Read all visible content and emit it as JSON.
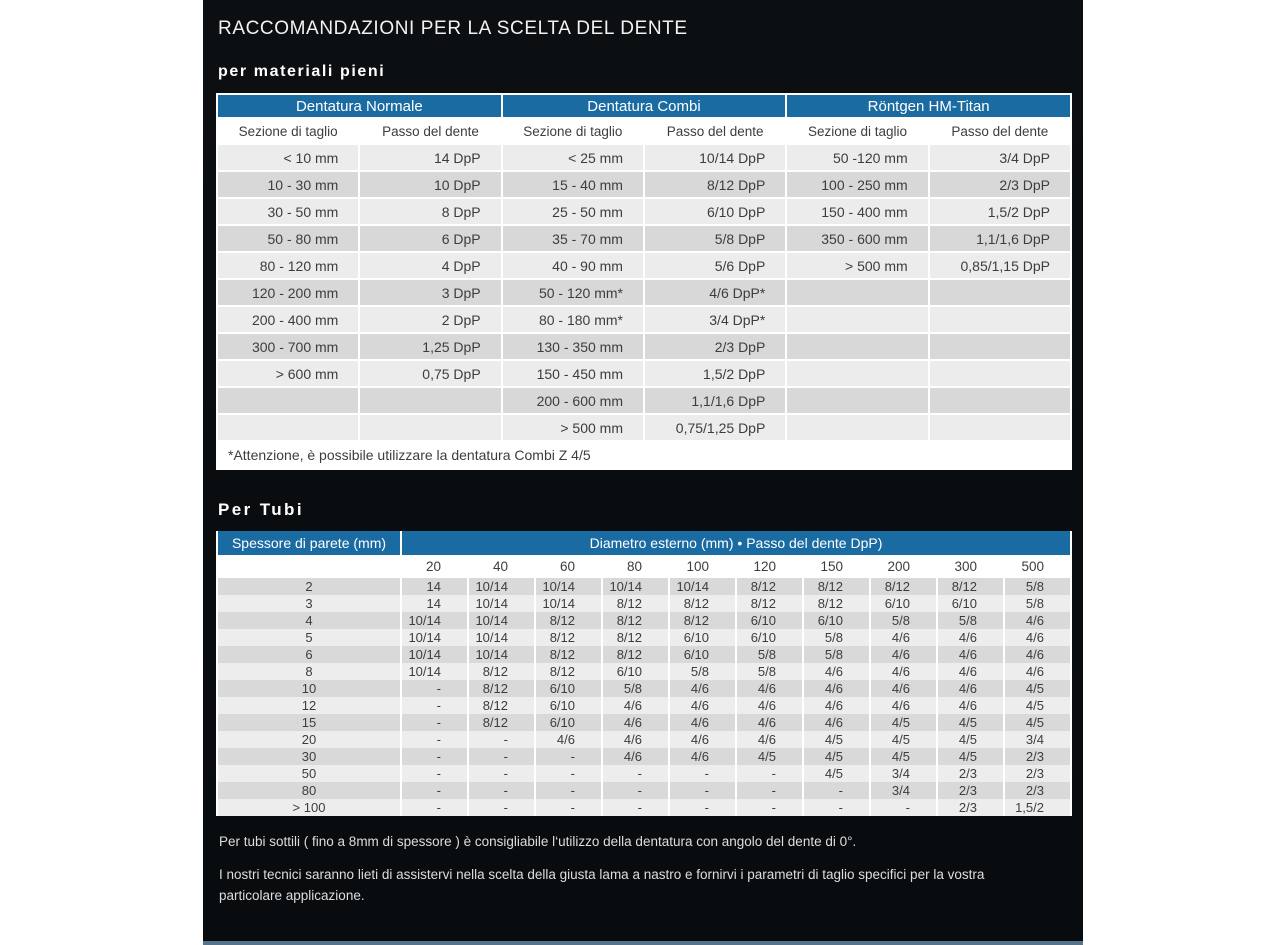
{
  "page": {
    "title": "RACCOMANDAZIONI PER LA SCELTA DEL DENTE"
  },
  "colors": {
    "header_blue": "#1b6ba3",
    "panel_dark": "#0a0d10",
    "row_light": "#ececec",
    "row_dark": "#d8d8d8",
    "accent_bar": "#56738a"
  },
  "solid_section": {
    "heading": "per materiali pieni",
    "group_headers": [
      "Dentatura Normale",
      "Dentatura Combi",
      "Röntgen HM-Titan"
    ],
    "sub_headers": [
      "Sezione di taglio",
      "Passo del dente",
      "Sezione di taglio",
      "Passo del dente",
      "Sezione di taglio",
      "Passo del dente"
    ],
    "rows": [
      [
        "< 10 mm",
        "14 DpP",
        "< 25 mm",
        "10/14 DpP",
        "50 -120 mm",
        "3/4 DpP"
      ],
      [
        "10 - 30 mm",
        "10 DpP",
        "15 - 40 mm",
        "8/12 DpP",
        "100 - 250 mm",
        "2/3 DpP"
      ],
      [
        "30 - 50 mm",
        "8 DpP",
        "25 - 50 mm",
        "6/10 DpP",
        "150 - 400 mm",
        "1,5/2 DpP"
      ],
      [
        "50 - 80 mm",
        "6 DpP",
        "35 - 70 mm",
        "5/8 DpP",
        "350 - 600 mm",
        "1,1/1,6 DpP"
      ],
      [
        "80 - 120 mm",
        "4 DpP",
        "40 - 90 mm",
        "5/6 DpP",
        "> 500 mm",
        "0,85/1,15 DpP"
      ],
      [
        "120 - 200 mm",
        "3 DpP",
        "50 - 120 mm*",
        "4/6 DpP*",
        "",
        ""
      ],
      [
        "200 - 400 mm",
        "2 DpP",
        "80 - 180 mm*",
        "3/4 DpP*",
        "",
        ""
      ],
      [
        "300 - 700 mm",
        "1,25 DpP",
        "130 - 350 mm",
        "2/3 DpP",
        "",
        ""
      ],
      [
        "> 600 mm",
        "0,75 DpP",
        "150 - 450 mm",
        "1,5/2 DpP",
        "",
        ""
      ],
      [
        "",
        "",
        "200 - 600 mm",
        "1,1/1,6 DpP",
        "",
        ""
      ],
      [
        "",
        "",
        "> 500 mm",
        "0,75/1,25 DpP",
        "",
        ""
      ]
    ],
    "footnote": "*Attenzione, è possibile utilizzare la dentatura Combi Z 4/5"
  },
  "tubes_section": {
    "heading": "Per Tubi",
    "wall_header": "Spessore di parete (mm)",
    "diameter_header": "Diametro esterno (mm) • Passo del dente DpP)",
    "diameters": [
      "20",
      "40",
      "60",
      "80",
      "100",
      "120",
      "150",
      "200",
      "300",
      "500"
    ],
    "rows": [
      [
        "2",
        "14",
        "10/14",
        "10/14",
        "10/14",
        "10/14",
        "8/12",
        "8/12",
        "8/12",
        "8/12",
        "5/8"
      ],
      [
        "3",
        "14",
        "10/14",
        "10/14",
        "8/12",
        "8/12",
        "8/12",
        "8/12",
        "6/10",
        "6/10",
        "5/8"
      ],
      [
        "4",
        "10/14",
        "10/14",
        "8/12",
        "8/12",
        "8/12",
        "6/10",
        "6/10",
        "5/8",
        "5/8",
        "4/6"
      ],
      [
        "5",
        "10/14",
        "10/14",
        "8/12",
        "8/12",
        "6/10",
        "6/10",
        "5/8",
        "4/6",
        "4/6",
        "4/6"
      ],
      [
        "6",
        "10/14",
        "10/14",
        "8/12",
        "8/12",
        "6/10",
        "5/8",
        "5/8",
        "4/6",
        "4/6",
        "4/6"
      ],
      [
        "8",
        "10/14",
        "8/12",
        "8/12",
        "6/10",
        "5/8",
        "5/8",
        "4/6",
        "4/6",
        "4/6",
        "4/6"
      ],
      [
        "10",
        "-",
        "8/12",
        "6/10",
        "5/8",
        "4/6",
        "4/6",
        "4/6",
        "4/6",
        "4/6",
        "4/5"
      ],
      [
        "12",
        "-",
        "8/12",
        "6/10",
        "4/6",
        "4/6",
        "4/6",
        "4/6",
        "4/6",
        "4/6",
        "4/5"
      ],
      [
        "15",
        "-",
        "8/12",
        "6/10",
        "4/6",
        "4/6",
        "4/6",
        "4/6",
        "4/5",
        "4/5",
        "4/5"
      ],
      [
        "20",
        "-",
        "-",
        "4/6",
        "4/6",
        "4/6",
        "4/6",
        "4/5",
        "4/5",
        "4/5",
        "3/4"
      ],
      [
        "30",
        "-",
        "-",
        "-",
        "4/6",
        "4/6",
        "4/5",
        "4/5",
        "4/5",
        "4/5",
        "2/3"
      ],
      [
        "50",
        "-",
        "-",
        "-",
        "-",
        "-",
        "-",
        "4/5",
        "3/4",
        "2/3",
        "2/3"
      ],
      [
        "80",
        "-",
        "-",
        "-",
        "-",
        "-",
        "-",
        "-",
        "3/4",
        "2/3",
        "2/3"
      ],
      [
        "> 100",
        "-",
        "-",
        "-",
        "-",
        "-",
        "-",
        "-",
        "-",
        "2/3",
        "1,5/2"
      ]
    ]
  },
  "notes": {
    "note1": "Per tubi sottili ( fino a 8mm di spessore ) è consigliabile l‘utilizzo della dentatura con angolo del dente di 0°.",
    "note2": "I nostri tecnici saranno lieti di assistervi nella scelta della giusta lama a nastro e fornirvi i parametri di taglio specifici per la vostra particolare applicazione."
  }
}
